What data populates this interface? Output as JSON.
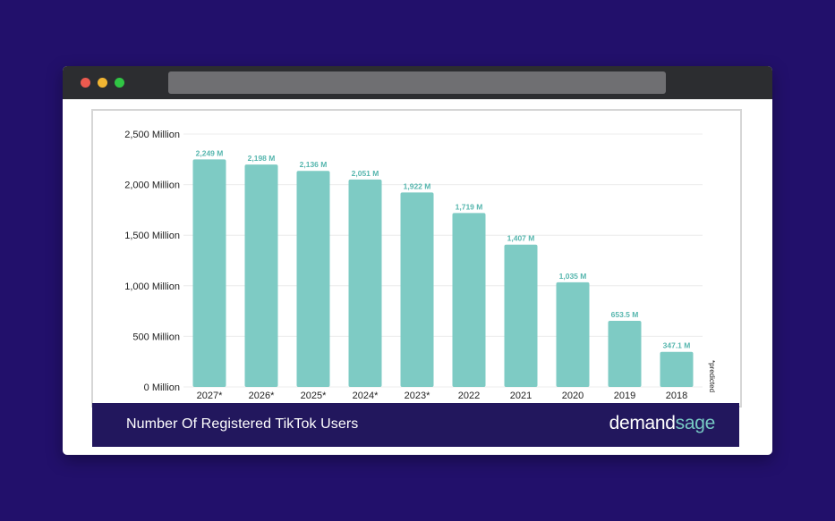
{
  "window": {
    "controls": [
      "close",
      "minimize",
      "maximize"
    ]
  },
  "footer": {
    "title": "Number Of Registered TikTok Users",
    "brand_part1": "demand",
    "brand_part2": "sage"
  },
  "colors": {
    "background": "#22106b",
    "bar": "#7ecbc4",
    "value_label": "#56b6ae",
    "footer": "#22175d",
    "brand_accent": "#77c9c3"
  },
  "chart_data": {
    "type": "bar",
    "title": "Number Of Registered TikTok Users",
    "categories": [
      "2027*",
      "2026*",
      "2025*",
      "2024*",
      "2023*",
      "2022",
      "2021",
      "2020",
      "2019",
      "2018"
    ],
    "values": [
      2249,
      2198,
      2136,
      2051,
      1922,
      1719,
      1407,
      1035,
      653.5,
      347.1
    ],
    "value_labels": [
      "2,249 M",
      "2,198 M",
      "2,136 M",
      "2,051 M",
      "1,922 M",
      "1,719 M",
      "1,407 M",
      "1,035 M",
      "653.5 M",
      "347.1 M"
    ],
    "y_ticks": [
      0,
      500,
      1000,
      1500,
      2000,
      2500
    ],
    "y_tick_labels": [
      "0 Million",
      "500 Million",
      "1,000 Million",
      "1,500 Million",
      "2,000 Million",
      "2,500 Million"
    ],
    "ylim": [
      0,
      2500
    ],
    "xlabel": "",
    "ylabel": "",
    "note": "*predicted",
    "grid": true,
    "legend": "none"
  }
}
